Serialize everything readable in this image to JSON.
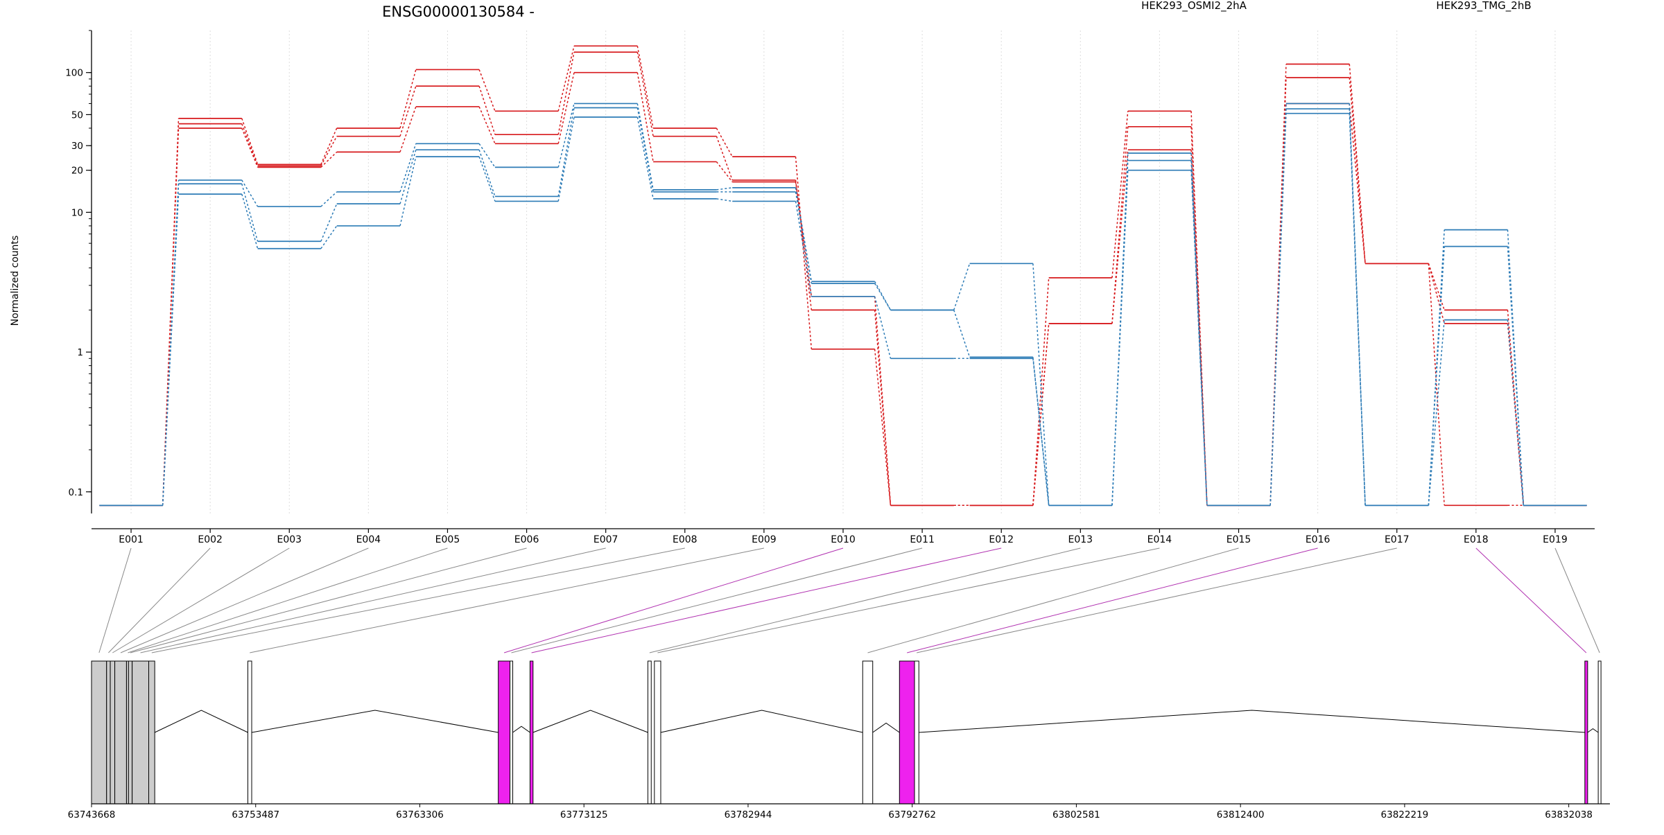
{
  "chart_data": {
    "type": "line",
    "title": "ENSG00000130584 -",
    "ylabel": "Normalized counts",
    "y_scale": "log",
    "ylim": [
      0.07,
      200
    ],
    "y_ticks": [
      {
        "value": 0.1,
        "label": "0.1"
      },
      {
        "value": 1,
        "label": "1"
      },
      {
        "value": 10,
        "label": "10"
      },
      {
        "value": 20,
        "label": "20"
      },
      {
        "value": 30,
        "label": "30"
      },
      {
        "value": 50,
        "label": "50"
      },
      {
        "value": 100,
        "label": "100"
      }
    ],
    "categories": [
      "E001",
      "E002",
      "E003",
      "E004",
      "E005",
      "E006",
      "E007",
      "E008",
      "E009",
      "E010",
      "E011",
      "E012",
      "E013",
      "E014",
      "E015",
      "E016",
      "E017",
      "E018",
      "E019"
    ],
    "legend": [
      {
        "label": "HEK293_OSMI2_2hA",
        "color": "#d7191c"
      },
      {
        "label": "HEK293_TMG_2hB",
        "color": "#2c7bb6"
      }
    ],
    "grid": "vertical-dotted",
    "series": [
      {
        "group": "OSMI2",
        "color": "#d7191c",
        "values": [
          0.08,
          47,
          22,
          40,
          105,
          53,
          155,
          40,
          25,
          1.05,
          0.08,
          0.08,
          3.4,
          53,
          0.08,
          115,
          4.3,
          2,
          0.08
        ]
      },
      {
        "group": "OSMI2",
        "color": "#d7191c",
        "values": [
          0.08,
          43,
          21.5,
          35,
          80,
          36,
          140,
          35,
          17,
          2,
          0.08,
          0.08,
          1.6,
          41,
          0.08,
          92,
          4.3,
          1.6,
          0.08
        ]
      },
      {
        "group": "OSMI2",
        "color": "#d7191c",
        "values": [
          0.08,
          40,
          21,
          27,
          57,
          31,
          100,
          23,
          16.5,
          2.5,
          0.08,
          0.08,
          1.6,
          28,
          0.08,
          60,
          4.3,
          0.08,
          0.08
        ]
      },
      {
        "group": "TMG",
        "color": "#2c7bb6",
        "values": [
          0.08,
          17,
          11,
          14,
          31,
          21,
          60,
          14.5,
          15,
          3.2,
          2,
          4.3,
          0.08,
          26.5,
          0.08,
          60,
          0.08,
          7.5,
          0.08
        ]
      },
      {
        "group": "TMG",
        "color": "#2c7bb6",
        "values": [
          0.08,
          16,
          6.2,
          11.5,
          28,
          13,
          56,
          14,
          14,
          3.1,
          2,
          0.92,
          0.08,
          23.5,
          0.08,
          55,
          0.08,
          5.7,
          0.08
        ]
      },
      {
        "group": "TMG",
        "color": "#2c7bb6",
        "values": [
          0.08,
          13.5,
          5.5,
          8,
          25,
          12,
          48,
          12.5,
          12,
          2.5,
          0.9,
          0.9,
          0.08,
          20,
          0.08,
          51,
          0.08,
          1.7,
          0.08
        ]
      }
    ],
    "highlighted_exons": [
      "E010",
      "E012",
      "E016",
      "E018"
    ],
    "highlight_color": "#ee22ee",
    "genomic_axis": {
      "range": [
        63743668,
        63834500
      ],
      "tick_labels": [
        "63743668",
        "63753487",
        "63763306",
        "63773125",
        "63782944",
        "63792762",
        "63802581",
        "63812400",
        "63822219",
        "63832038"
      ]
    },
    "exon_coords": [
      {
        "start": 63743668,
        "end": 63744570
      },
      {
        "start": 63744570,
        "end": 63744790
      },
      {
        "start": 63744790,
        "end": 63745060
      },
      {
        "start": 63745060,
        "end": 63745760
      },
      {
        "start": 63745760,
        "end": 63745880
      },
      {
        "start": 63745880,
        "end": 63746100
      },
      {
        "start": 63746100,
        "end": 63747090
      },
      {
        "start": 63747090,
        "end": 63747450
      },
      {
        "start": 63753020,
        "end": 63753250
      },
      {
        "start": 63768000,
        "end": 63768700
      },
      {
        "start": 63768700,
        "end": 63768800
      },
      {
        "start": 63769900,
        "end": 63770080
      },
      {
        "start": 63776950,
        "end": 63777150
      },
      {
        "start": 63777340,
        "end": 63777720
      },
      {
        "start": 63789800,
        "end": 63790400
      },
      {
        "start": 63792000,
        "end": 63792900
      },
      {
        "start": 63792900,
        "end": 63793160
      },
      {
        "start": 63833000,
        "end": 63833150
      },
      {
        "start": 63833800,
        "end": 63833950
      }
    ]
  }
}
